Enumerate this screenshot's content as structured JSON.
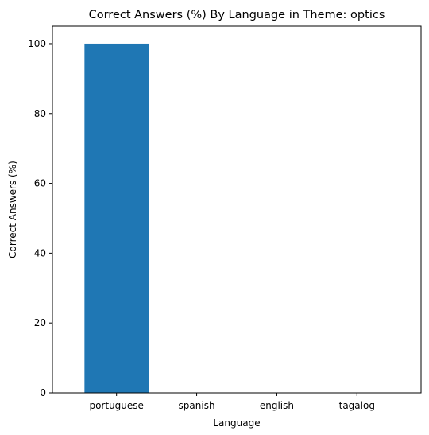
{
  "chart_data": {
    "type": "bar",
    "title": "Correct Answers (%) By Language in Theme: optics",
    "xlabel": "Language",
    "ylabel": "Correct Answers (%)",
    "categories": [
      "portuguese",
      "spanish",
      "english",
      "tagalog"
    ],
    "values": [
      100,
      0,
      0,
      0
    ],
    "ylim": [
      0,
      105
    ],
    "yticks": [
      0,
      20,
      40,
      60,
      80,
      100
    ],
    "bar_color": "#1f77b4",
    "grid": false,
    "legend": "none"
  }
}
